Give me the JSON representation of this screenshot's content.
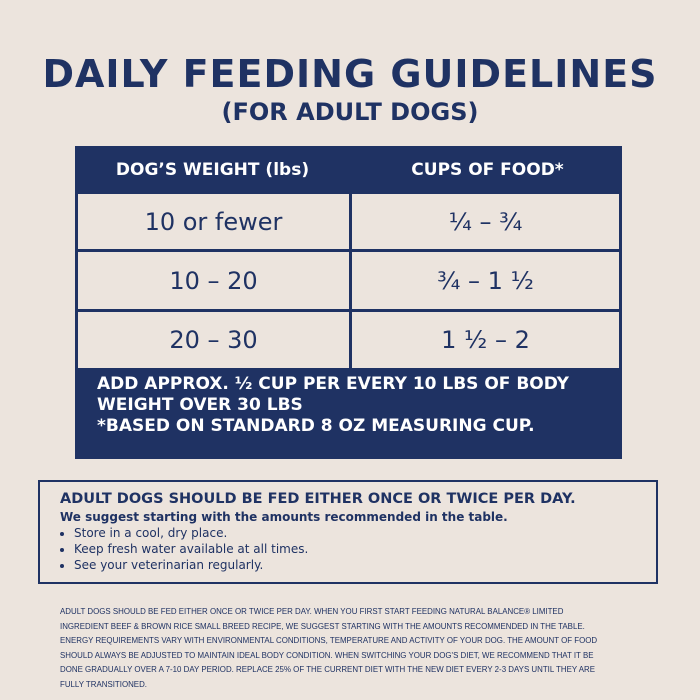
{
  "title": "DAILY FEEDING GUIDELINES",
  "subtitle": "(FOR ADULT DOGS)",
  "table": {
    "headers": [
      "DOG’S WEIGHT (lbs)",
      "CUPS OF FOOD*"
    ],
    "rows": [
      [
        "10 or fewer",
        "¼ – ¾"
      ],
      [
        "10 – 20",
        "¾ – 1 ½"
      ],
      [
        "20 – 30",
        "1 ½ – 2"
      ]
    ],
    "note_line1": "ADD APPROX. ½ CUP PER EVERY 10 LBS OF BODY WEIGHT OVER 30 LBS",
    "note_line2": "*BASED ON STANDARD 8 OZ MEASURING CUP."
  },
  "box": {
    "heading": "ADULT DOGS SHOULD BE FED EITHER ONCE OR TWICE PER DAY.",
    "subheading": "We suggest starting with the amounts recommended in the table.",
    "bullets": [
      "Store in a cool, dry place.",
      "Keep fresh water available at all times.",
      "See your veterinarian regularly."
    ]
  },
  "fine_print": "ADULT DOGS SHOULD BE FED EITHER ONCE OR TWICE PER DAY. WHEN YOU FIRST START FEEDING NATURAL BALANCE® LIMITED INGREDIENT BEEF & BROWN RICE SMALL BREED RECIPE, WE SUGGEST STARTING WITH THE AMOUNTS RECOMMENDED IN THE TABLE. ENERGY REQUIREMENTS VARY WITH ENVIRONMENTAL CONDITIONS, TEMPERATURE AND ACTIVITY OF YOUR DOG. THE AMOUNT OF FOOD SHOULD ALWAYS BE ADJUSTED TO MAINTAIN IDEAL BODY CONDITION. WHEN SWITCHING YOUR DOG'S DIET, WE RECOMMEND THAT IT BE DONE GRADUALLY OVER A 7-10 DAY PERIOD. REPLACE 25% OF THE CURRENT DIET WITH THE NEW DIET EVERY 2-3 DAYS UNTIL THEY ARE FULLY TRANSITIONED.",
  "colors": {
    "navy": "#1f3263",
    "background": "#ece4dd"
  }
}
